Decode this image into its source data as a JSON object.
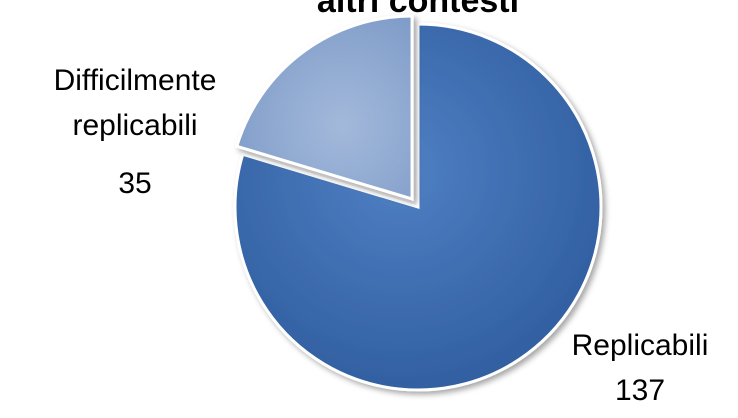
{
  "chart_data": {
    "type": "pie",
    "title": "altri contesti",
    "categories": [
      "Replicabili",
      "Difficilmente replicabili"
    ],
    "values": [
      137,
      35
    ],
    "colors": [
      "#3d6db3",
      "#8ea8d1"
    ]
  }
}
